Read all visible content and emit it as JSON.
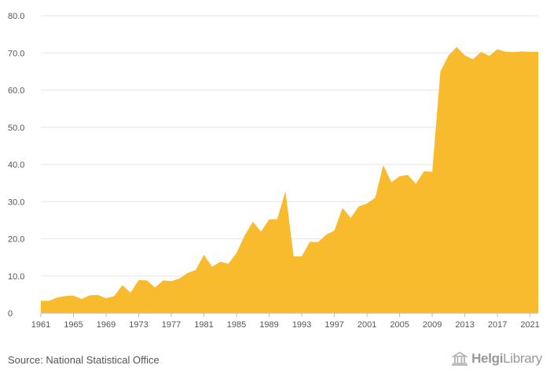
{
  "chart_data": {
    "type": "area",
    "x": [
      1961,
      1962,
      1963,
      1964,
      1965,
      1966,
      1967,
      1968,
      1969,
      1970,
      1971,
      1972,
      1973,
      1974,
      1975,
      1976,
      1977,
      1978,
      1979,
      1980,
      1981,
      1982,
      1983,
      1984,
      1985,
      1986,
      1987,
      1988,
      1989,
      1990,
      1991,
      1992,
      1993,
      1994,
      1995,
      1996,
      1997,
      1998,
      1999,
      2000,
      2001,
      2002,
      2003,
      2004,
      2005,
      2006,
      2007,
      2008,
      2009,
      2010,
      2011,
      2012,
      2013,
      2014,
      2015,
      2016,
      2017,
      2018,
      2019,
      2020,
      2021,
      2022
    ],
    "series": [
      {
        "values": [
          3.3,
          3.3,
          4.2,
          4.6,
          4.7,
          3.8,
          4.8,
          4.9,
          4.0,
          4.6,
          7.5,
          5.5,
          8.9,
          8.8,
          6.9,
          8.8,
          8.6,
          9.3,
          10.8,
          11.6,
          15.7,
          12.5,
          13.8,
          13.3,
          16.2,
          20.9,
          24.6,
          21.9,
          25.2,
          25.3,
          32.8,
          15.3,
          15.3,
          19.2,
          19.1,
          21.1,
          22.2,
          28.3,
          25.6,
          28.7,
          29.5,
          31.0,
          39.8,
          35.2,
          36.8,
          37.2,
          34.8,
          38.2,
          38.0,
          65.0,
          69.3,
          71.6,
          69.3,
          68.3,
          70.3,
          69.2,
          71.0,
          70.3,
          70.2,
          70.4,
          70.3,
          70.3
        ]
      }
    ],
    "xticks": [
      "1961",
      "1965",
      "1969",
      "1973",
      "1977",
      "1981",
      "1985",
      "1989",
      "1993",
      "1997",
      "2001",
      "2005",
      "2009",
      "2013",
      "2017",
      "2021"
    ],
    "yticks": [
      "0",
      "10.0",
      "20.0",
      "30.0",
      "40.0",
      "50.0",
      "60.0",
      "70.0",
      "80.0"
    ],
    "ylim": [
      0,
      80
    ],
    "grid": "horizontal",
    "color": "#F8BB2E"
  },
  "source_text": "Source: National Statistical Office",
  "logo": {
    "name": "HelgiLibrary",
    "bold": "Helgi",
    "light": "Library"
  }
}
